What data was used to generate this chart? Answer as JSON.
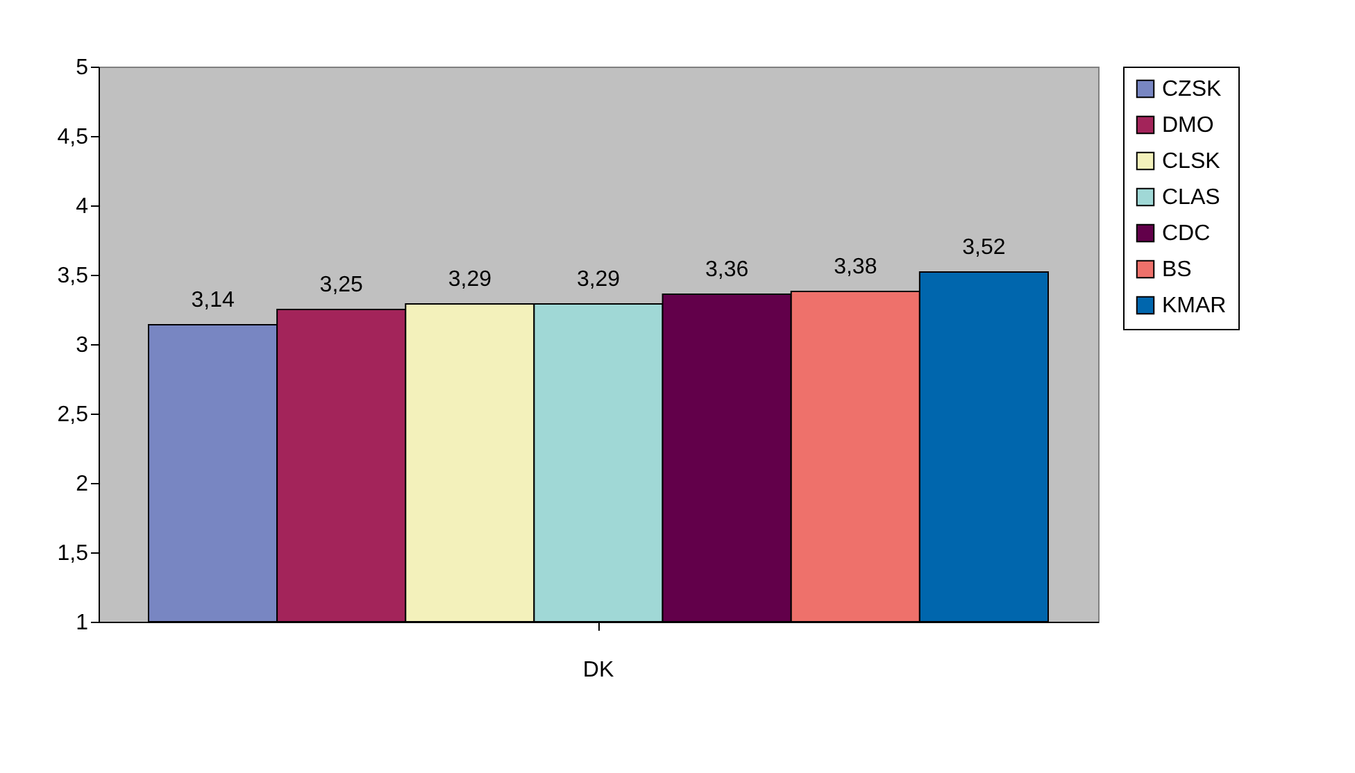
{
  "chart_data": {
    "type": "bar",
    "categories": [
      "DK"
    ],
    "series": [
      {
        "name": "CZSK",
        "color": "#7886c2",
        "values": [
          3.14
        ],
        "value_labels": [
          "3,14"
        ]
      },
      {
        "name": "DMO",
        "color": "#a3245a",
        "values": [
          3.25
        ],
        "value_labels": [
          "3,25"
        ]
      },
      {
        "name": "CLSK",
        "color": "#f3f1bb",
        "values": [
          3.29
        ],
        "value_labels": [
          "3,29"
        ]
      },
      {
        "name": "CLAS",
        "color": "#a0d8d6",
        "values": [
          3.29
        ],
        "value_labels": [
          "3,29"
        ]
      },
      {
        "name": "CDC",
        "color": "#62004a",
        "values": [
          3.36
        ],
        "value_labels": [
          "3,36"
        ]
      },
      {
        "name": "BS",
        "color": "#ee716b",
        "values": [
          3.38
        ],
        "value_labels": [
          "3,38"
        ]
      },
      {
        "name": "KMAR",
        "color": "#0066ad",
        "values": [
          3.52
        ],
        "value_labels": [
          "3,52"
        ]
      }
    ],
    "ylim": [
      1,
      5
    ],
    "yticks": [
      1,
      {
        "value": 1.5,
        "label": "1,5"
      },
      2,
      {
        "value": 2.5,
        "label": "2,5"
      },
      3,
      {
        "value": 3.5,
        "label": "3,5"
      },
      4,
      {
        "value": 4.5,
        "label": "4,5"
      },
      5
    ],
    "grid": false,
    "legend": "right"
  }
}
